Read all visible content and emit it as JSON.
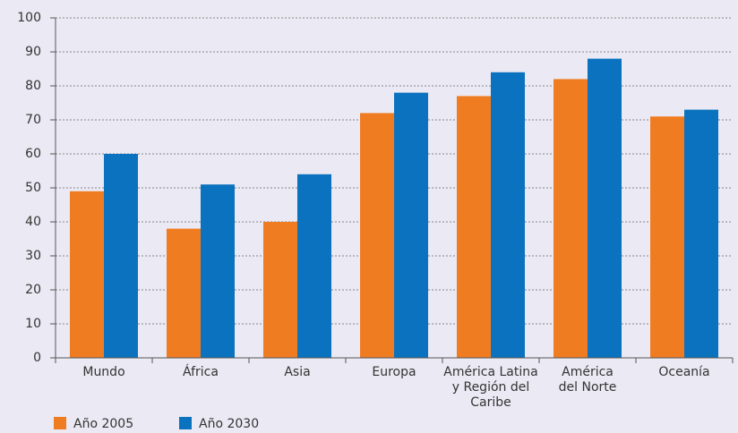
{
  "chart_data": {
    "type": "bar",
    "categories": [
      "Mundo",
      "África",
      "Asia",
      "Europa",
      "América Latina\ny Región del\nCaribe",
      "América\ndel Norte",
      "Oceanía"
    ],
    "series": [
      {
        "name": "Año 2005",
        "color": "#f07c22",
        "values": [
          49,
          38,
          40,
          72,
          77,
          82,
          71
        ]
      },
      {
        "name": "Año 2030",
        "color": "#0a72be",
        "values": [
          60,
          51,
          54,
          78,
          84,
          88,
          73
        ]
      }
    ],
    "ylim": [
      0,
      100
    ],
    "yticks": [
      0,
      10,
      20,
      30,
      40,
      50,
      60,
      70,
      80,
      90,
      100
    ],
    "grid": true,
    "legend": "bottom-left"
  }
}
